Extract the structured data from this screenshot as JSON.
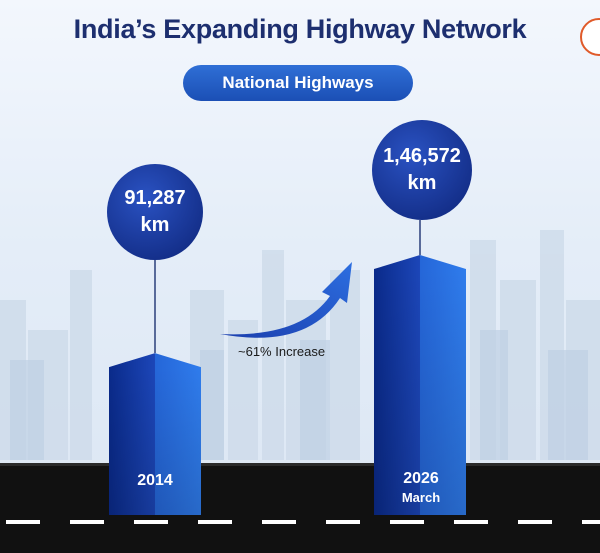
{
  "title": "India’s Expanding Highway Network",
  "badge": "National Highways",
  "annotation": "~61% Increase",
  "colors": {
    "title": "#1d2f6f",
    "bar_dark": "#0e2a8c",
    "bar_light": "#2a6ee0",
    "road": "#111111",
    "accent": "#1b4fb5"
  },
  "chart_data": {
    "type": "bar",
    "title": "India’s Expanding Highway Network",
    "subtitle": "National Highways",
    "categories": [
      "2014",
      "2026"
    ],
    "category_sublabels": [
      "",
      "March"
    ],
    "values": [
      91287,
      146572
    ],
    "value_labels": [
      {
        "number": "91,287",
        "unit": "km"
      },
      {
        "number": "1,46,572",
        "unit": "km"
      }
    ],
    "annotation": "~61% Increase",
    "grid": false
  }
}
